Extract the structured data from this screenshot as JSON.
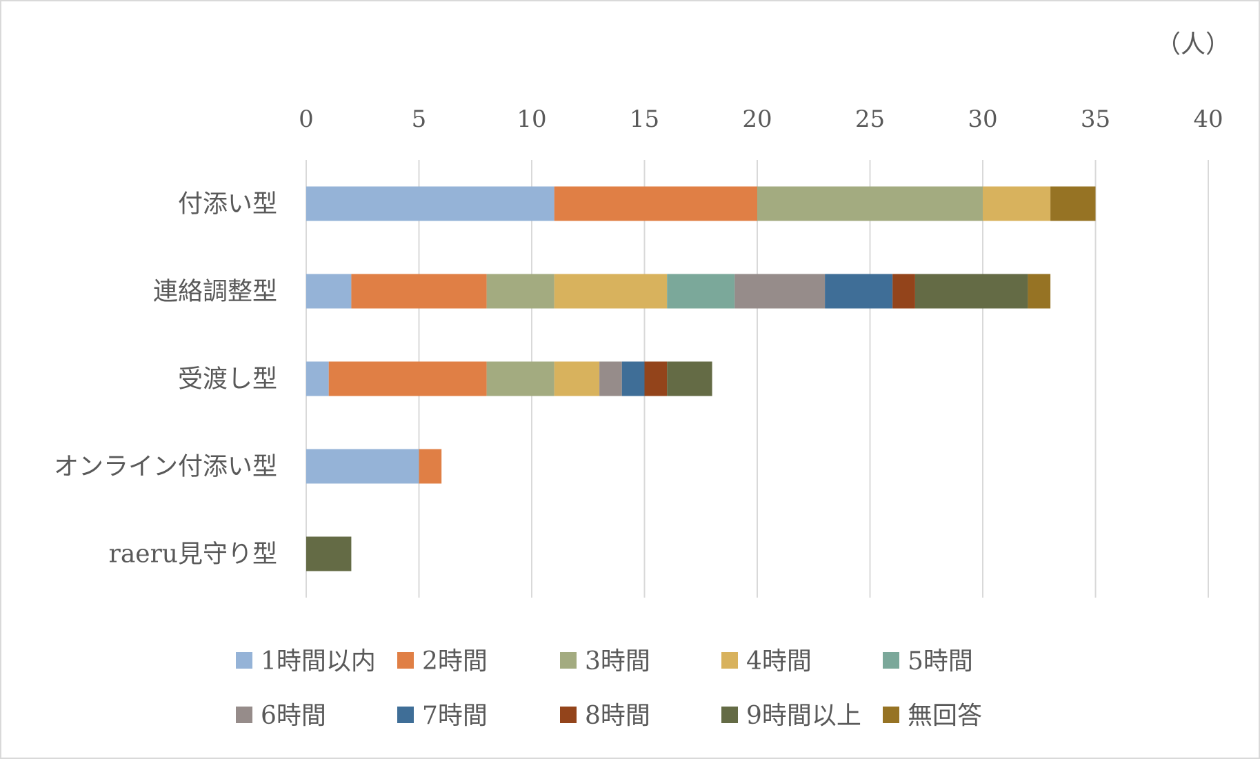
{
  "chart_data": {
    "type": "bar",
    "orientation": "horizontal",
    "stacked": true,
    "unit_label": "（人）",
    "xlim": [
      0,
      40
    ],
    "x_ticks": [
      0,
      5,
      10,
      15,
      20,
      25,
      30,
      35,
      40
    ],
    "x_axis_position": "top",
    "grid": true,
    "legend_position": "bottom",
    "categories": [
      "付添い型",
      "連絡調整型",
      "受渡し型",
      "オンライン付添い型",
      "raeru見守り型"
    ],
    "series": [
      {
        "name": "1時間以内",
        "color": "#95B3D7",
        "values": [
          11,
          2,
          1,
          5,
          0
        ]
      },
      {
        "name": "2時間",
        "color": "#E07F45",
        "values": [
          9,
          6,
          7,
          1,
          0
        ]
      },
      {
        "name": "3時間",
        "color": "#A3AB80",
        "values": [
          10,
          3,
          3,
          0,
          0
        ]
      },
      {
        "name": "4時間",
        "color": "#D8B25D",
        "values": [
          3,
          5,
          2,
          0,
          0
        ]
      },
      {
        "name": "5時間",
        "color": "#7BA89A",
        "values": [
          0,
          3,
          0,
          0,
          0
        ]
      },
      {
        "name": "6時間",
        "color": "#968C8A",
        "values": [
          0,
          4,
          1,
          0,
          0
        ]
      },
      {
        "name": "7時間",
        "color": "#3F6E97",
        "values": [
          0,
          3,
          1,
          0,
          0
        ]
      },
      {
        "name": "8時間",
        "color": "#93441B",
        "values": [
          0,
          1,
          1,
          0,
          0
        ]
      },
      {
        "name": "9時間以上",
        "color": "#646B45",
        "values": [
          0,
          5,
          2,
          0,
          2
        ]
      },
      {
        "name": "無回答",
        "color": "#967324",
        "values": [
          2,
          1,
          0,
          0,
          0
        ]
      }
    ]
  }
}
